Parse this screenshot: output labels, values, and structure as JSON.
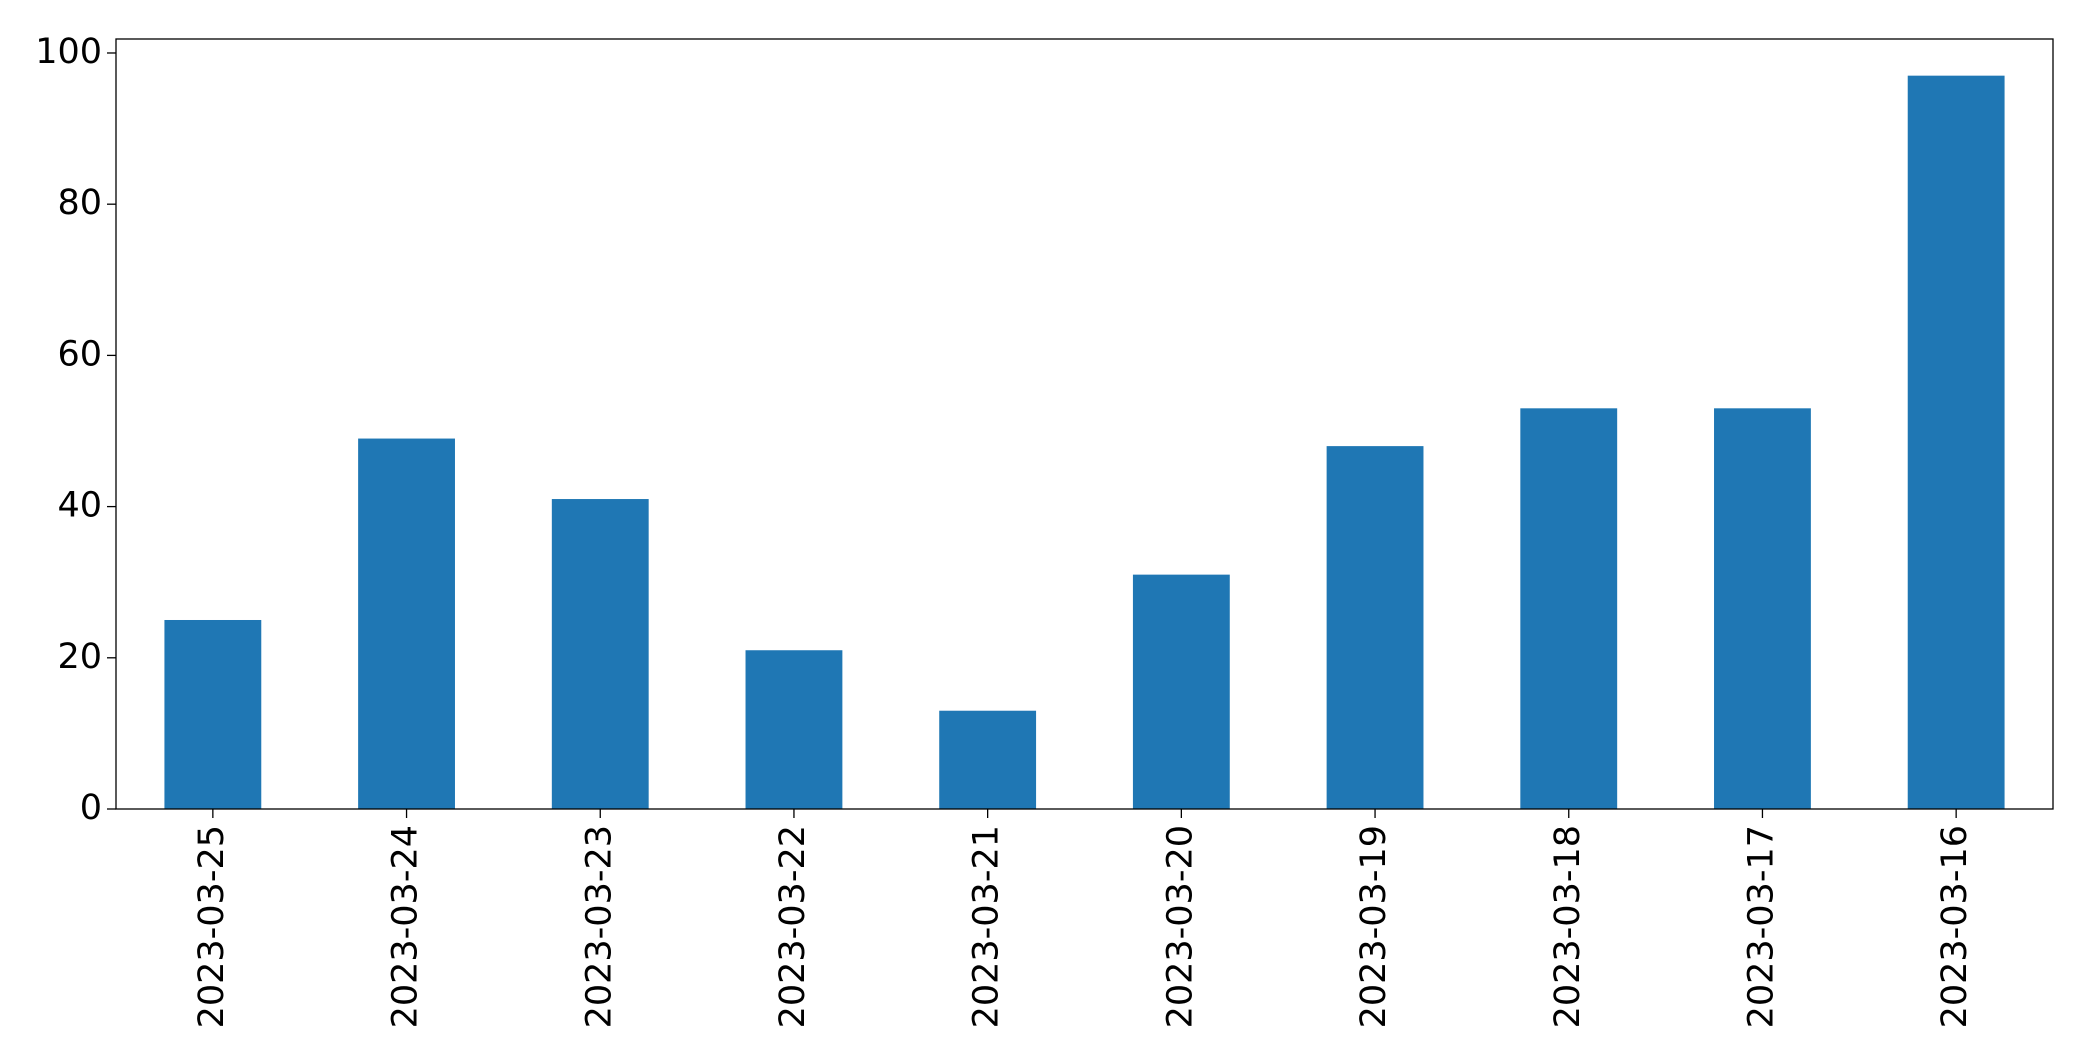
{
  "chart_data": {
    "type": "bar",
    "categories": [
      "2023-03-25",
      "2023-03-24",
      "2023-03-23",
      "2023-03-22",
      "2023-03-21",
      "2023-03-20",
      "2023-03-19",
      "2023-03-18",
      "2023-03-17",
      "2023-03-16"
    ],
    "values": [
      25,
      49,
      41,
      21,
      13,
      31,
      48,
      53,
      53,
      97
    ],
    "color": "#1f77b4",
    "ylim": [
      0,
      101.85
    ],
    "yticks": [
      0,
      20,
      40,
      60,
      80,
      100
    ],
    "grid": false
  }
}
